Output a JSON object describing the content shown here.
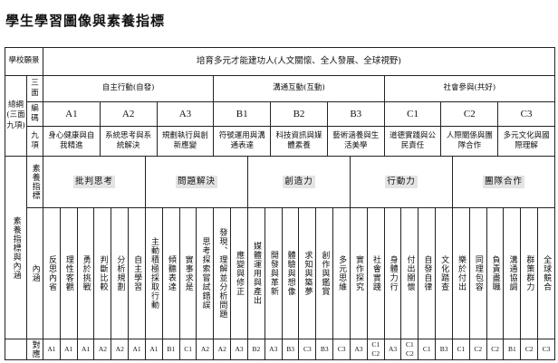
{
  "title": "學生學習圖像與素養指標",
  "labels": {
    "vision_label": "學校願景",
    "outline_label": "總綱(三面九項)",
    "three_aspects_label": "三面",
    "code_label": "編碼",
    "nine_items_label": "九項",
    "competency_section_label": "素養指標與內涵",
    "indicator_label": "素養指標",
    "content_label": "內涵",
    "mapping_label": "對應"
  },
  "vision": "培育多元才能建功人(人文關懷、全人發展、全球視野)",
  "aspects": [
    "自主行動(自發)",
    "溝通互動(互動)",
    "社會參與(共好)"
  ],
  "nine_items": [
    {
      "code": "A1",
      "name": "身心健康與自我精進"
    },
    {
      "code": "A2",
      "name": "系統思考與系統解決"
    },
    {
      "code": "A3",
      "name": "規劃執行與創新應變"
    },
    {
      "code": "B1",
      "name": "符號運用與溝通表達"
    },
    {
      "code": "B2",
      "name": "科技資訊與媒體素養"
    },
    {
      "code": "B3",
      "name": "藝術涵養與生活美學"
    },
    {
      "code": "C1",
      "name": "道德實踐與公民責任"
    },
    {
      "code": "C2",
      "name": "人際關係與團隊合作"
    },
    {
      "code": "C3",
      "name": "多元文化與國際理解"
    }
  ],
  "indicator_groups": [
    {
      "name": "批判思考",
      "items": [
        {
          "text": "反思內省",
          "map": [
            "A1"
          ]
        },
        {
          "text": "理性客觀",
          "map": [
            "A1"
          ]
        },
        {
          "text": "勇於挑戰",
          "map": [
            "A1"
          ]
        },
        {
          "text": "判斷比較",
          "map": [
            "A2"
          ]
        },
        {
          "text": "分析規劃",
          "map": [
            "A2"
          ]
        },
        {
          "text": "自主學習",
          "map": [
            "A1"
          ]
        }
      ]
    },
    {
      "name": "問題解決",
      "items": [
        {
          "text": "主動積極採取行動",
          "map": [
            "A1"
          ]
        },
        {
          "text": "傾聽表達",
          "map": [
            "B1"
          ]
        },
        {
          "text": "實事求是",
          "map": [
            "C1"
          ]
        },
        {
          "text": "思考探索嘗試錯誤",
          "map": [
            "A2"
          ]
        },
        {
          "text": "發現、理解並分析問題",
          "map": [
            "A2"
          ]
        },
        {
          "text": "應變與修正",
          "map": [
            "A3"
          ]
        }
      ]
    },
    {
      "name": "創造力",
      "items": [
        {
          "text": "媒體運用與產出",
          "map": [
            "B2"
          ]
        },
        {
          "text": "開發與革新",
          "map": [
            "A3"
          ]
        },
        {
          "text": "體驗與想像",
          "map": [
            "B3"
          ]
        },
        {
          "text": "求知與築夢",
          "map": [
            "C3"
          ]
        },
        {
          "text": "創作與鑑賞",
          "map": [
            "B3"
          ]
        },
        {
          "text": "多元思維",
          "map": [
            "C3"
          ]
        }
      ]
    },
    {
      "name": "行動力",
      "items": [
        {
          "text": "實作探究",
          "map": [
            "A3"
          ]
        },
        {
          "text": "社會實踐",
          "map": [
            "C1",
            "C2"
          ]
        },
        {
          "text": "身體力行",
          "map": [
            "A3"
          ]
        },
        {
          "text": "付出關懷",
          "map": [
            "C1",
            "C2"
          ]
        },
        {
          "text": "自發自律",
          "map": [
            "C1"
          ]
        },
        {
          "text": "文化踏查",
          "map": [
            "B3"
          ]
        }
      ]
    },
    {
      "name": "團隊合作",
      "items": [
        {
          "text": "樂於付出",
          "map": [
            "C1"
          ]
        },
        {
          "text": "同理包容",
          "map": [
            "C2"
          ]
        },
        {
          "text": "負責盡職",
          "map": [
            "C2"
          ]
        },
        {
          "text": "溝通協調",
          "map": [
            "B1"
          ]
        },
        {
          "text": "群策群力",
          "map": [
            "C2"
          ]
        },
        {
          "text": "全球競合",
          "map": [
            "C3"
          ]
        }
      ]
    }
  ]
}
